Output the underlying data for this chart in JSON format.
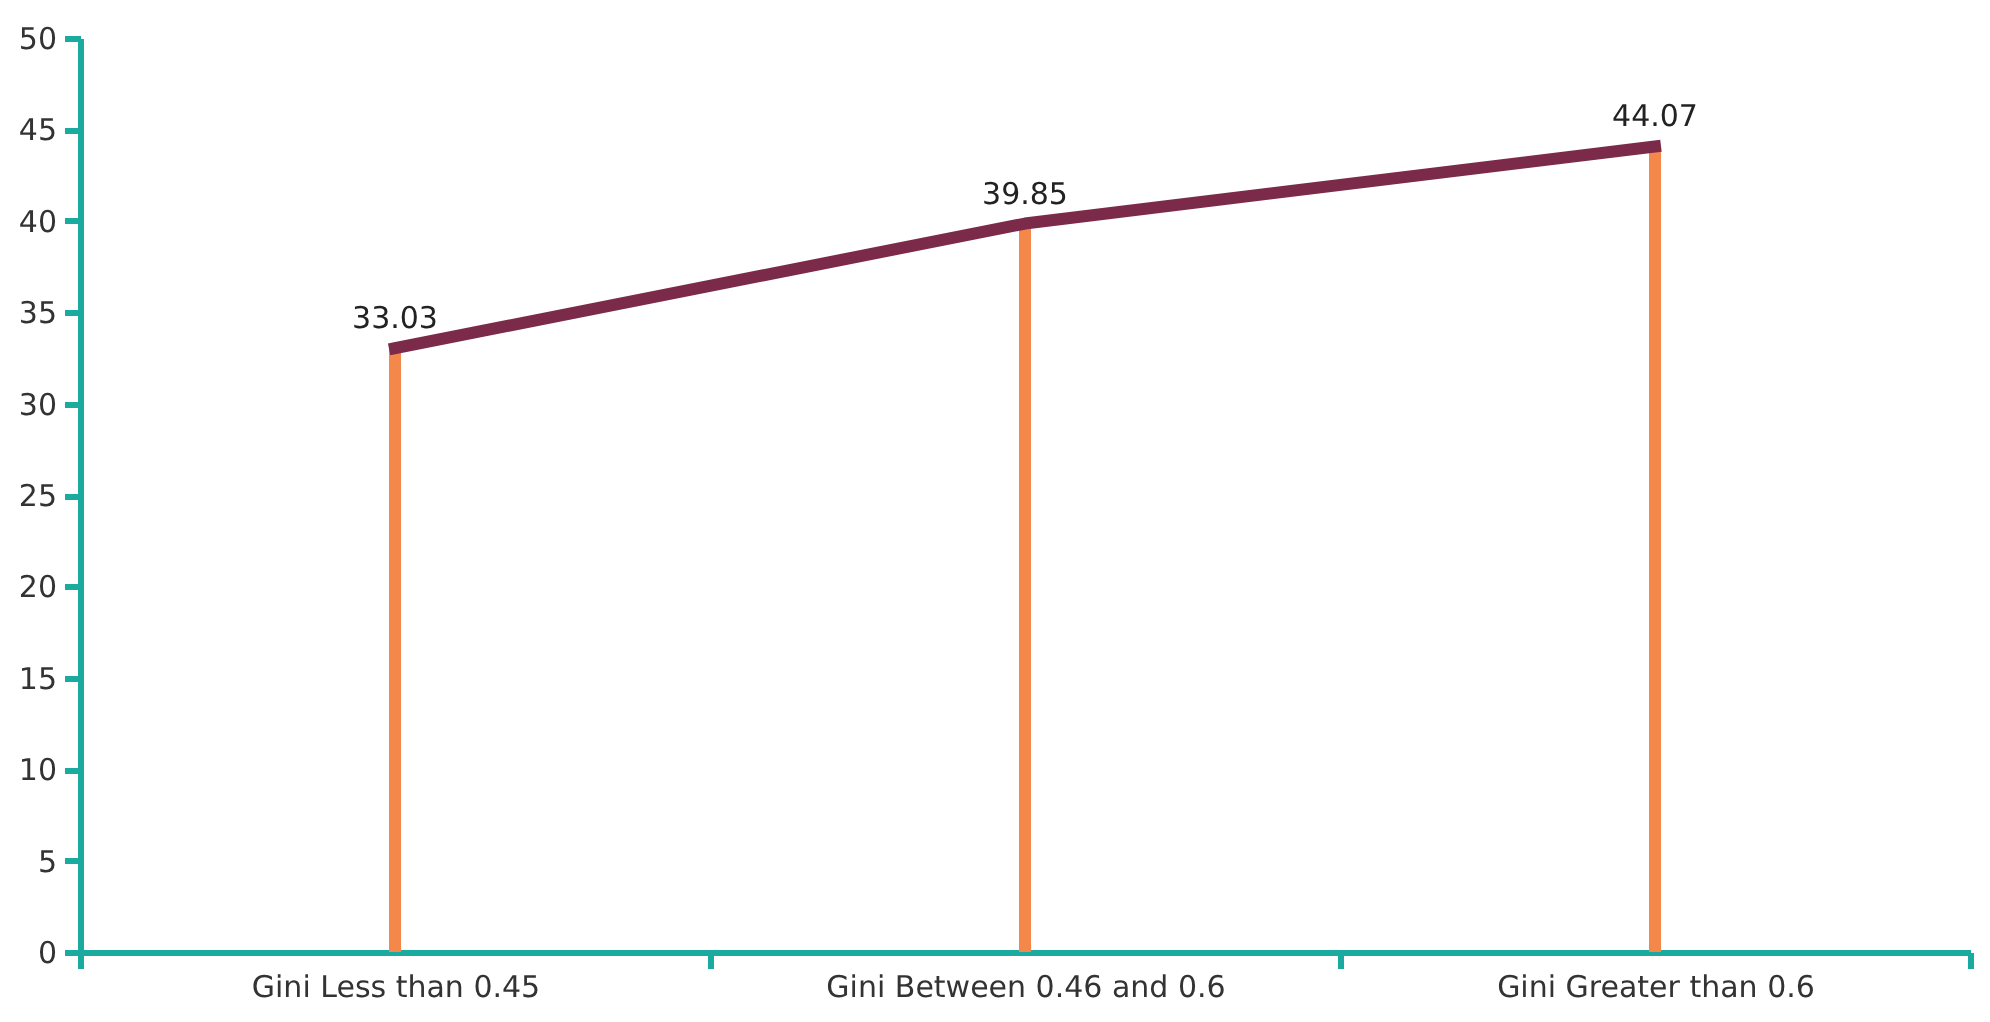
{
  "chart_data": {
    "type": "bar",
    "categories": [
      "Gini Less than 0.45",
      "Gini Between 0.46 and 0.6",
      "Gini Greater than 0.6"
    ],
    "series": [
      {
        "color": "#f4884a",
        "values": [
          33.03,
          39.85,
          44.07
        ],
        "value_labels": [
          "33.03",
          "39.85",
          "44.07"
        ]
      },
      {
        "type": "line",
        "color": "#7b2a4a",
        "values": [
          33.03,
          39.85,
          44.07
        ]
      }
    ],
    "ylim": [
      0,
      50
    ],
    "yticks": [
      0,
      5,
      10,
      15,
      20,
      25,
      30,
      35,
      40,
      45,
      50
    ]
  }
}
